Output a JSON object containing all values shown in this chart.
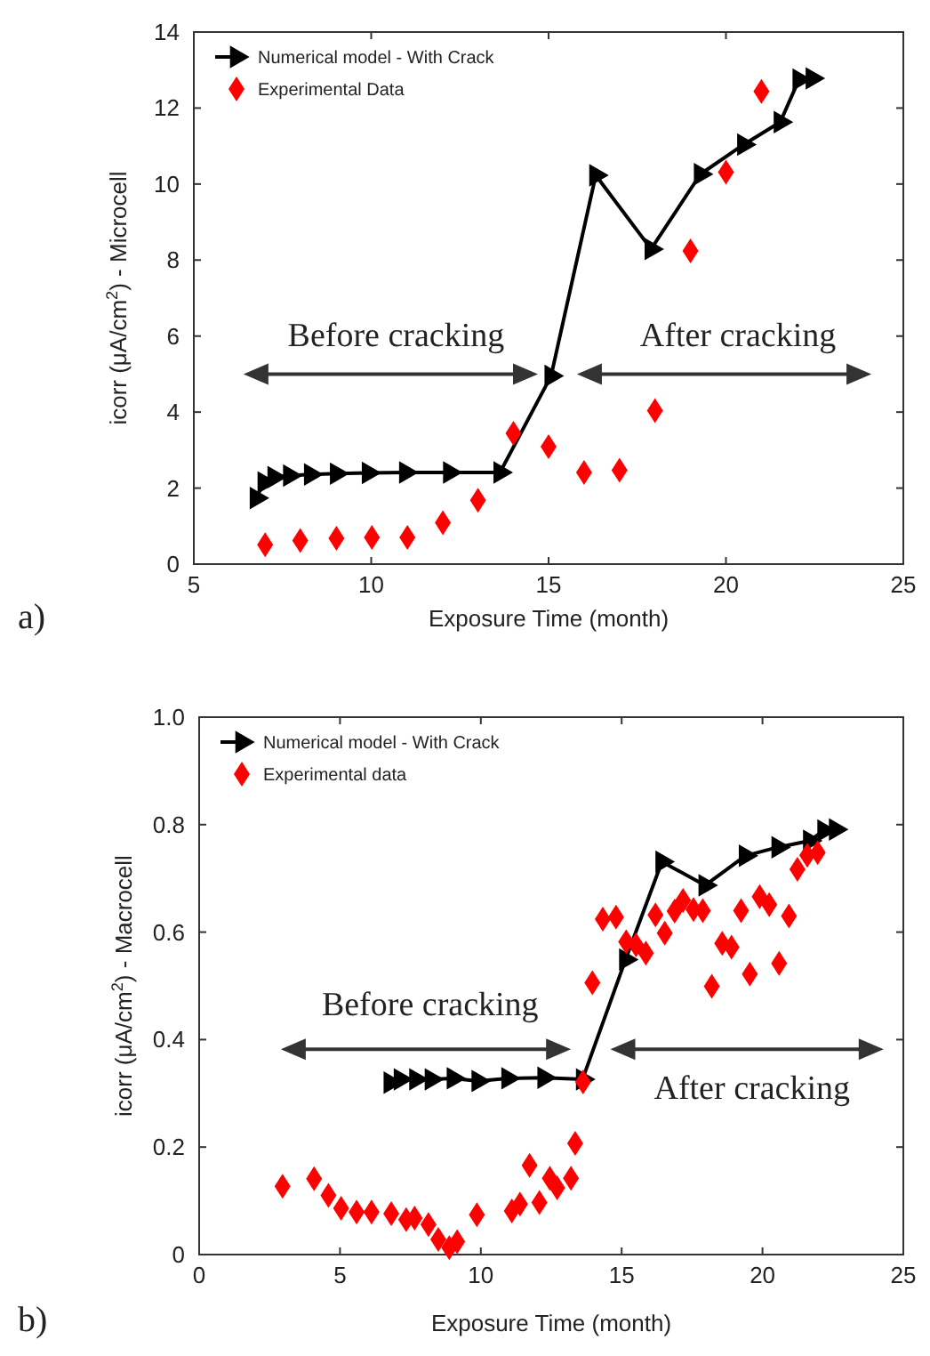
{
  "chart_data": [
    {
      "type": "line",
      "xlabel": "Exposure Time (month)",
      "ylabel": "icorr (μA/cm$^{2}$) - Microcell",
      "annotations": [
        "a)",
        "Before cracking",
        "After cracking"
      ],
      "xlim": [
        5,
        25
      ],
      "xticks": [
        5,
        10,
        15,
        20,
        25
      ],
      "ylim": [
        0,
        14
      ],
      "yticks": [
        0,
        2,
        4,
        6,
        8,
        10,
        12,
        14
      ],
      "grid": false,
      "legend": "top left",
      "x": [
        6.76,
        6.98,
        7.26,
        7.7,
        8.29,
        9.02,
        9.92,
        10.97,
        12.21,
        13.63,
        15.07,
        16.33,
        17.89,
        19.28,
        20.5,
        21.53,
        22.06,
        22.43
      ],
      "series": [
        {
          "name": "Numerical model - With Crack",
          "type": "line",
          "color": "#000000",
          "marker": "triangle",
          "values": [
            1.74,
            2.15,
            2.29,
            2.33,
            2.36,
            2.38,
            2.4,
            2.41,
            2.41,
            2.41,
            4.95,
            10.23,
            8.29,
            10.26,
            11.04,
            11.63,
            12.75,
            12.78
          ]
        },
        {
          "name": "Experimental Data",
          "type": "scatter",
          "color": "#ff0000",
          "marker": "diamond",
          "x": [
            7.01,
            8.0,
            9.02,
            10.02,
            11.02,
            12.02,
            13.01,
            14.01,
            15.0,
            16.0,
            17.0,
            18.0,
            19.0,
            20.0,
            21.0
          ],
          "values": [
            0.51,
            0.62,
            0.68,
            0.7,
            0.7,
            1.09,
            1.68,
            3.44,
            3.09,
            2.41,
            2.47,
            4.04,
            8.24,
            10.31,
            12.44
          ]
        }
      ]
    },
    {
      "type": "line",
      "xlabel": "Exposure Time (month)",
      "ylabel": "icorr (μA/cm$^{2}$) - Macrocell",
      "annotations": [
        "b)",
        "Before cracking",
        "After cracking"
      ],
      "xlim": [
        0,
        25
      ],
      "xticks": [
        0,
        5,
        10,
        15,
        20,
        25
      ],
      "ylim": [
        0,
        1
      ],
      "yticks": [
        0,
        0.2,
        0.4,
        0.6,
        0.8,
        {
          "value": 1,
          "label": "1.0"
        }
      ],
      "grid": false,
      "legend": "top left",
      "x": [
        6.78,
        7.14,
        7.69,
        8.24,
        9.02,
        9.9,
        10.96,
        12.24,
        13.61,
        15.14,
        16.43,
        17.96,
        19.39,
        20.55,
        21.67,
        22.18,
        22.59
      ],
      "series": [
        {
          "name": "Numerical model - With Crack",
          "type": "line",
          "color": "#000000",
          "marker": "triangle",
          "values": [
            0.32,
            0.326,
            0.326,
            0.326,
            0.328,
            0.323,
            0.328,
            0.329,
            0.326,
            0.549,
            0.731,
            0.687,
            0.742,
            0.758,
            0.77,
            0.789,
            0.791
          ]
        },
        {
          "name": "Experimental data",
          "type": "scatter",
          "color": "#ff0000",
          "marker": "diamond",
          "x": [
            2.96,
            4.08,
            4.59,
            5.04,
            5.59,
            6.12,
            6.82,
            7.35,
            7.65,
            8.14,
            8.49,
            8.88,
            9.16,
            9.86,
            11.1,
            11.39,
            11.73,
            12.08,
            12.45,
            12.71,
            13.2,
            13.35,
            13.63,
            13.96,
            14.33,
            14.8,
            15.16,
            15.51,
            15.86,
            16.2,
            16.53,
            16.88,
            17.18,
            17.55,
            17.88,
            18.2,
            18.57,
            18.9,
            19.24,
            19.55,
            19.9,
            20.24,
            20.59,
            20.94,
            21.24,
            21.59,
            21.96
          ],
          "values": [
            0.127,
            0.141,
            0.11,
            0.086,
            0.079,
            0.079,
            0.076,
            0.065,
            0.068,
            0.056,
            0.028,
            0.013,
            0.024,
            0.074,
            0.081,
            0.094,
            0.166,
            0.097,
            0.142,
            0.124,
            0.142,
            0.207,
            0.321,
            0.506,
            0.624,
            0.628,
            0.582,
            0.576,
            0.561,
            0.632,
            0.598,
            0.639,
            0.659,
            0.642,
            0.64,
            0.499,
            0.579,
            0.572,
            0.64,
            0.522,
            0.666,
            0.651,
            0.542,
            0.63,
            0.717,
            0.743,
            0.748
          ]
        }
      ]
    }
  ]
}
